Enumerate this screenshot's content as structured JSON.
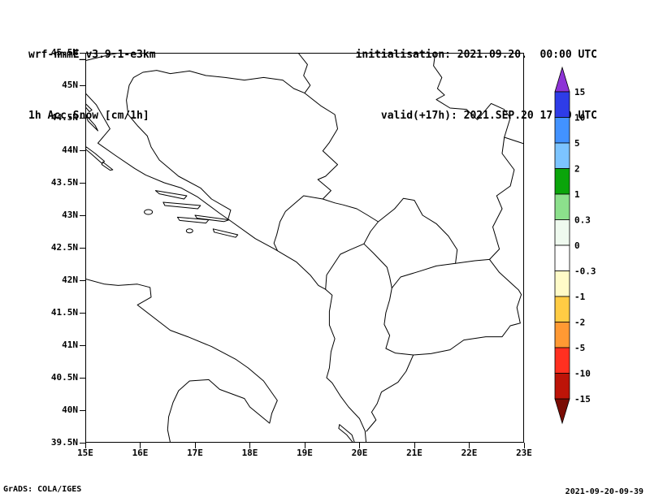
{
  "header": {
    "model_line": "wrf-nmmE_v3.9.1-e3km",
    "field_line": "1h Acc.Snow [cm/1h]",
    "init_line": "initialisation: 2021.09.20.  00:00 UTC",
    "valid_line": "valid(+17h): 2021.SEP.20 17:00 UTC"
  },
  "footer": {
    "credit": "GrADS: COLA/IGES",
    "timestamp": "2021-09-20-09-39"
  },
  "chart_data": {
    "type": "heatmap",
    "title": "1h Acc.Snow [cm/1h]",
    "region_note": "lat-lon map of the Adriatic / western Balkans; only coastlines and country borders visible",
    "values_note": "no shaded snow contours anywhere in the domain (accumulated snow field is zero everywhere)",
    "x_axis": {
      "ticks": [
        "15E",
        "16E",
        "17E",
        "18E",
        "19E",
        "20E",
        "21E",
        "22E",
        "23E"
      ],
      "range_deg": [
        15,
        23
      ]
    },
    "y_axis": {
      "ticks": [
        "45.5N",
        "45N",
        "44.5N",
        "44N",
        "43.5N",
        "43N",
        "42.5N",
        "42N",
        "41.5N",
        "41N",
        "40.5N",
        "40N",
        "39.5N"
      ],
      "range_deg": [
        45.5,
        39.5
      ]
    },
    "colorbar": {
      "unit": "cm/1h",
      "boundary_labels": [
        "15",
        "10",
        "5",
        "2",
        "1",
        "0.3",
        "0",
        "-0.3",
        "-1",
        "-2",
        "-5",
        "-10",
        "-15"
      ],
      "band_colors_top_to_bottom": [
        "#2E3CE8",
        "#4292FF",
        "#7CC4FF",
        "#0AA50A",
        "#8CE08C",
        "#EFFAEF",
        "#FFFFFF",
        "#FFFBC8",
        "#FFCC44",
        "#FF9933",
        "#FF3020",
        "#BD1408"
      ],
      "triangle_top_color": "#8D33D6",
      "triangle_bottom_color": "#7A0C04"
    }
  }
}
